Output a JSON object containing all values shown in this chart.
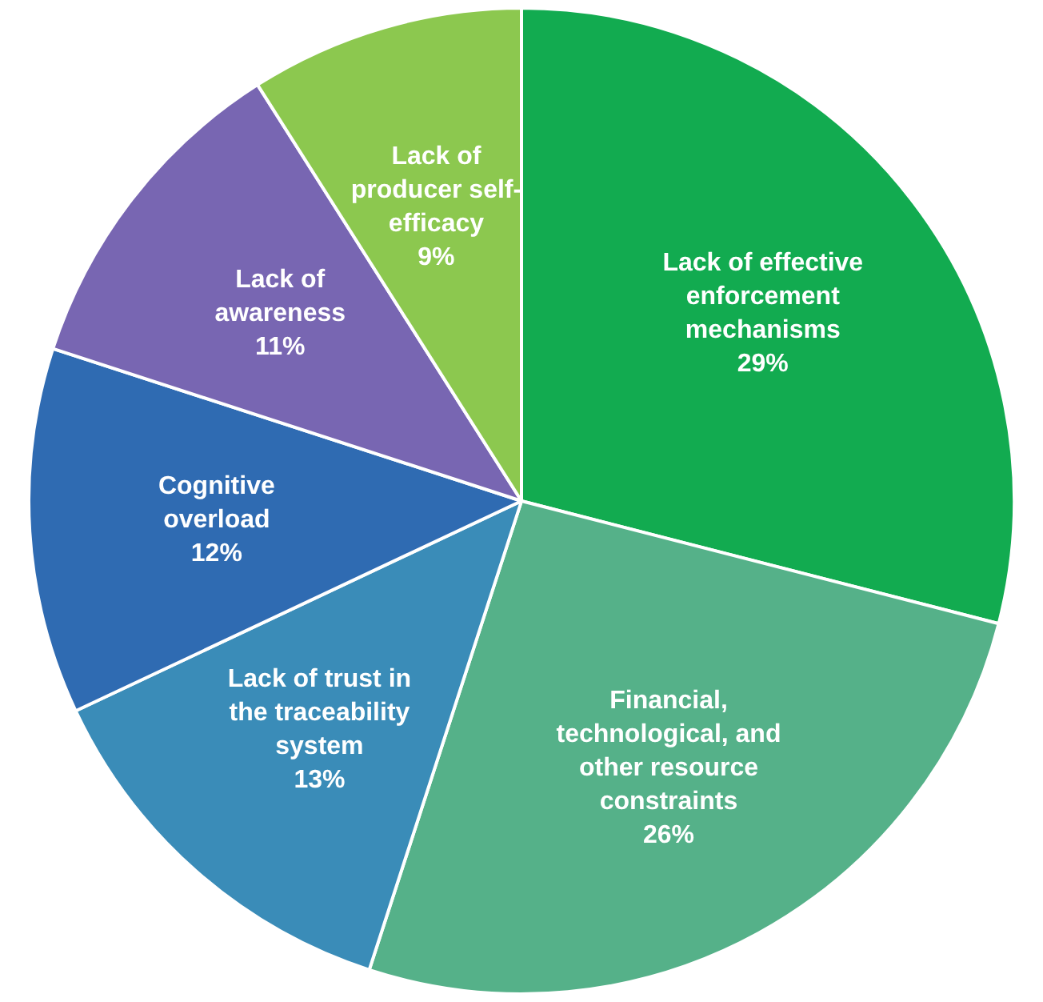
{
  "chart_data": {
    "type": "pie",
    "categories": [
      "Lack of effective enforcement mechanisms",
      "Financial, technological, and other resource constraints",
      "Lack of trust in the traceability system",
      "Cognitive overload",
      "Lack of awareness",
      "Lack of producer self-efficacy"
    ],
    "values": [
      29,
      26,
      13,
      12,
      11,
      9
    ],
    "colors": [
      "#12ab50",
      "#55b189",
      "#3a8cb8",
      "#2f6bb2",
      "#7866b2",
      "#8cc84f"
    ],
    "value_labels": [
      "29%",
      "26%",
      "13%",
      "12%",
      "11%",
      "9%"
    ],
    "legend": false
  }
}
